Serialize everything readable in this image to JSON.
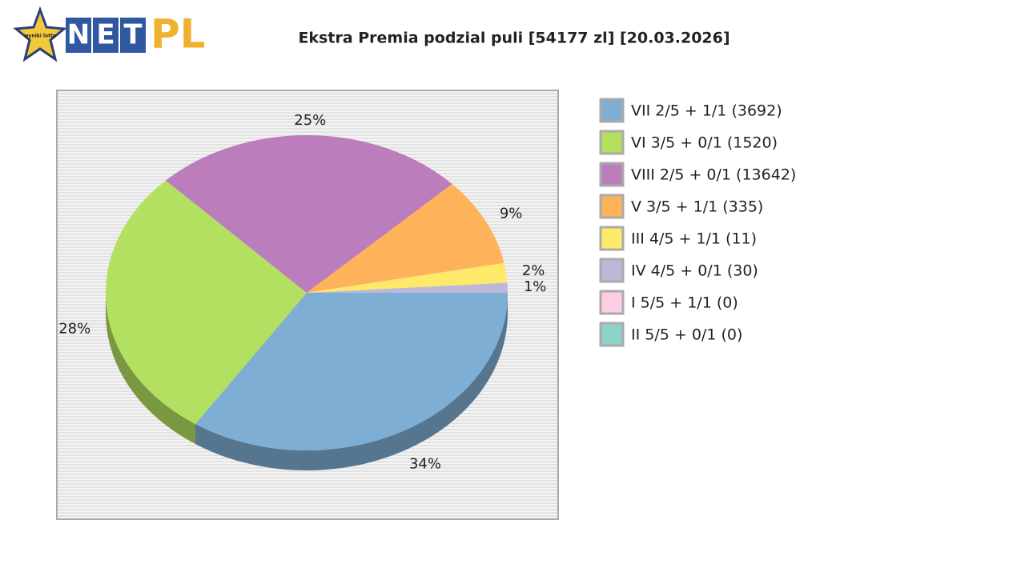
{
  "logo": {
    "badge": "wyniki lotto",
    "letters": [
      "N",
      "E",
      "T"
    ],
    "suffix": "PL"
  },
  "chart_data": {
    "type": "pie",
    "title": "Ekstra Premia podzial puli [54177 zl] [20.03.2026]",
    "categories": [
      "VII 2/5 + 1/1 (3692)",
      "VI 3/5 + 0/1 (1520)",
      "VIII 2/5 + 0/1 (13642)",
      "V 3/5 + 1/1 (335)",
      "III 4/5 + 1/1 (11)",
      "IV 4/5 + 0/1 (30)",
      "I 5/5 + 1/1 (0)",
      "II 5/5 + 0/1 (0)"
    ],
    "values": [
      34,
      28,
      25,
      9,
      2,
      1,
      0,
      0
    ],
    "value_labels": [
      "34%",
      "28%",
      "25%",
      "9%",
      "2%",
      "1%",
      null,
      null
    ],
    "colors": [
      "#7eaed4",
      "#b3e060",
      "#bc7dbc",
      "#feb35a",
      "#fee96a",
      "#bcb8da",
      "#fccde5",
      "#8dd3c7"
    ],
    "legend": "right"
  }
}
